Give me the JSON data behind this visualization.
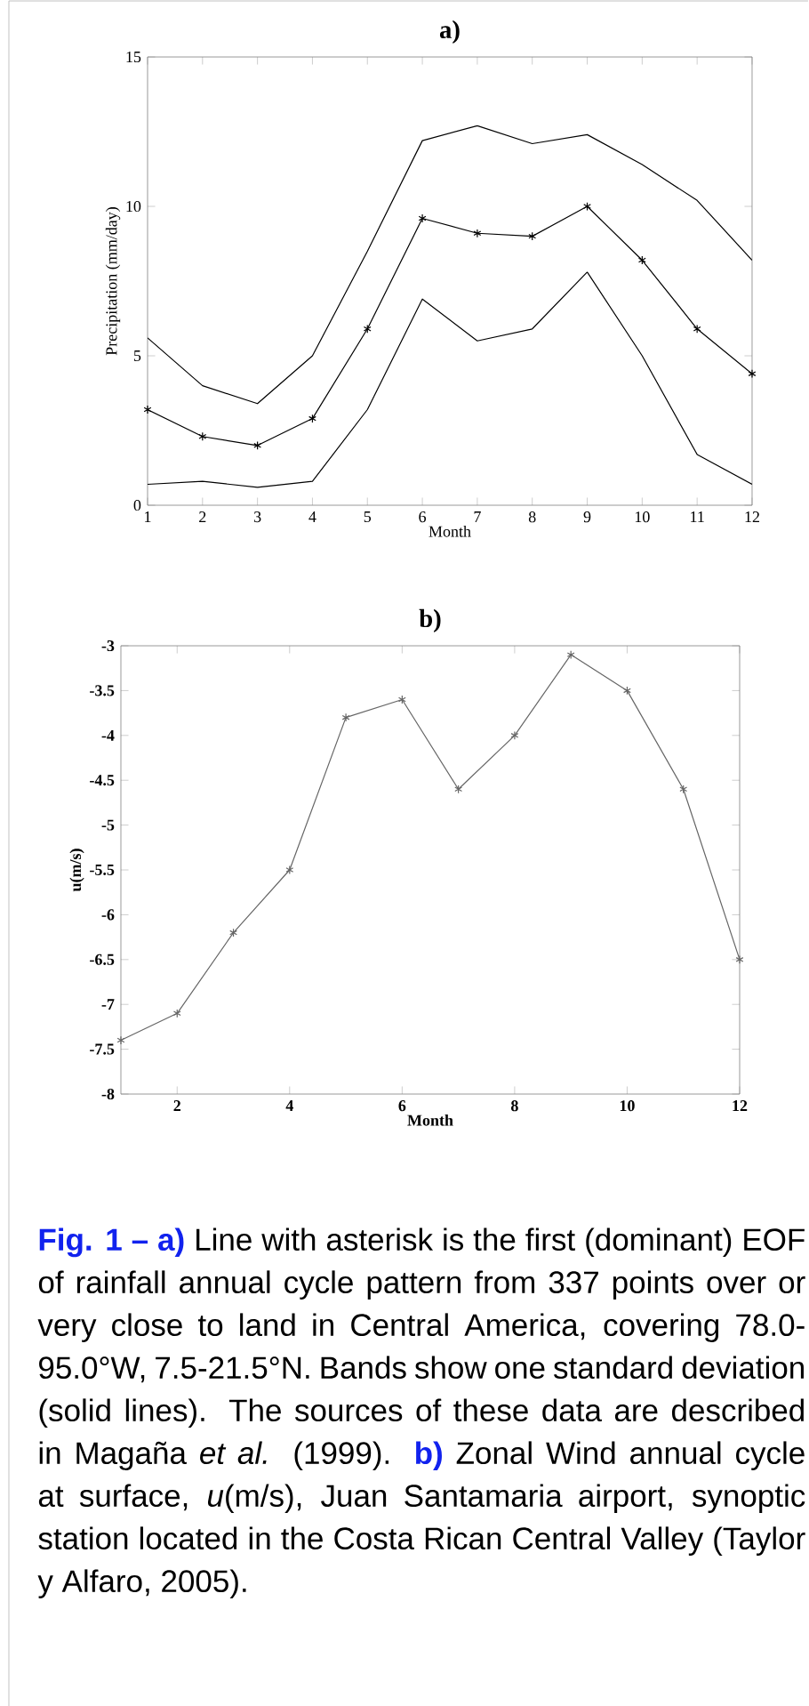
{
  "chart_data": [
    {
      "type": "line",
      "title": "a)",
      "xlabel": "Month",
      "ylabel": "Precipitation (mm/day)",
      "x": [
        1,
        2,
        3,
        4,
        5,
        6,
        7,
        8,
        9,
        10,
        11,
        12
      ],
      "xlim": [
        1,
        12
      ],
      "xticks": [
        1,
        2,
        3,
        4,
        5,
        6,
        7,
        8,
        9,
        10,
        11,
        12
      ],
      "ylim": [
        0,
        15
      ],
      "yticks": [
        0,
        5,
        10,
        15
      ],
      "grid": false,
      "series": [
        {
          "color": "#000000",
          "marker": "none",
          "line_style": "solid",
          "values": [
            5.6,
            4.0,
            3.4,
            5.0,
            8.5,
            12.2,
            12.7,
            12.1,
            12.4,
            11.4,
            10.2,
            8.2
          ]
        },
        {
          "color": "#000000",
          "marker": "cross",
          "line_style": "solid",
          "values": [
            3.2,
            2.3,
            2.0,
            2.9,
            5.9,
            9.6,
            9.1,
            9.0,
            10.0,
            8.2,
            5.9,
            4.4
          ]
        },
        {
          "color": "#000000",
          "marker": "none",
          "line_style": "solid",
          "values": [
            0.7,
            0.8,
            0.6,
            0.8,
            3.2,
            6.9,
            5.5,
            5.9,
            7.8,
            5.0,
            1.7,
            0.7
          ]
        }
      ]
    },
    {
      "type": "line",
      "title": "b)",
      "xlabel": "Month",
      "ylabel": "u(m/s)",
      "x": [
        1,
        2,
        3,
        4,
        5,
        6,
        7,
        8,
        9,
        10,
        11,
        12
      ],
      "xlim": [
        1,
        12
      ],
      "xticks": [
        2,
        4,
        6,
        8,
        10,
        12
      ],
      "ylim": [
        -8,
        -3
      ],
      "yticks": [
        -8,
        -7.5,
        -7,
        -6.5,
        -6,
        -5.5,
        -5,
        -4.5,
        -4,
        -3.5,
        -3
      ],
      "grid": false,
      "series": [
        {
          "color": "#666666",
          "marker": "cross",
          "line_style": "solid",
          "values": [
            -7.4,
            -7.1,
            -6.2,
            -5.5,
            -3.8,
            -3.6,
            -4.6,
            -4.0,
            -3.1,
            -3.5,
            -4.6,
            -6.5
          ]
        }
      ],
      "annotations": [
        "Fig. 1 – a)",
        "Line with asterisk is the first (dominant) EOF of rainfall annual cycle pattern from 337 points over or very close to land in Central America, covering 78.0-95.0°W, 7.5-21.5°N. Bands show one standard deviation (solid lines). The sources of these data are described in Magaña *et al.* (1999).",
        "b)",
        "Zonal Wind annual cycle at surface, *u*(m/s), Juan Santamaria airport, synoptic station located in the Costa Rican Central Valley (Taylor y Alfaro, 2005)."
      ]
    }
  ]
}
